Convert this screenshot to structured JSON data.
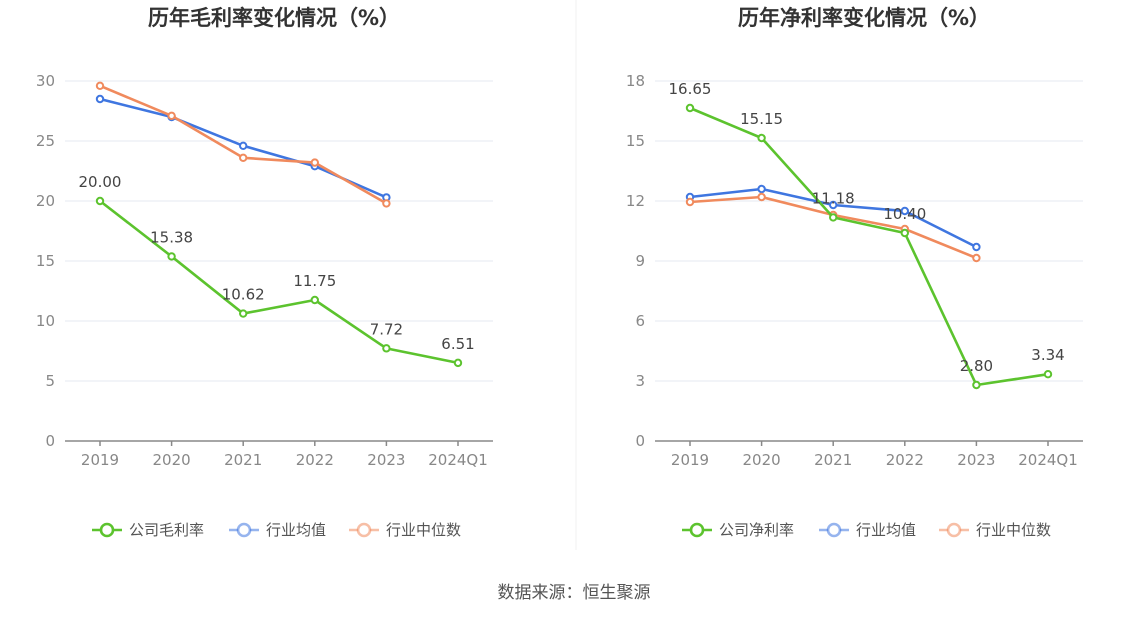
{
  "charts": [
    {
      "type": "line",
      "title": "历年毛利率变化情况（%）",
      "categories": [
        "2019",
        "2020",
        "2021",
        "2022",
        "2023",
        "2024Q1"
      ],
      "y_ticks": [
        0,
        5,
        10,
        15,
        20,
        25,
        30
      ],
      "ylim": [
        0,
        30
      ],
      "series": [
        {
          "name": "公司毛利率",
          "color": "#5cc32e",
          "values": [
            20.0,
            15.38,
            10.62,
            11.75,
            7.72,
            6.51
          ],
          "labels": [
            "20.00",
            "15.38",
            "10.62",
            "11.75",
            "7.72",
            "6.51"
          ]
        },
        {
          "name": "行业均值",
          "color": "#3f76e0",
          "values": [
            28.5,
            27.0,
            24.6,
            22.9,
            20.3,
            null
          ]
        },
        {
          "name": "行业中位数",
          "color": "#f08a5d",
          "values": [
            29.6,
            27.1,
            23.6,
            23.2,
            19.8,
            null
          ]
        }
      ]
    },
    {
      "type": "line",
      "title": "历年净利率变化情况（%）",
      "categories": [
        "2019",
        "2020",
        "2021",
        "2022",
        "2023",
        "2024Q1"
      ],
      "y_ticks": [
        0,
        3,
        6,
        9,
        12,
        15,
        18
      ],
      "ylim": [
        0,
        18
      ],
      "series": [
        {
          "name": "公司净利率",
          "color": "#5cc32e",
          "values": [
            16.65,
            15.15,
            11.18,
            10.4,
            2.8,
            3.34
          ],
          "labels": [
            "16.65",
            "15.15",
            "11.18",
            "10.40",
            "2.80",
            "3.34"
          ]
        },
        {
          "name": "行业均值",
          "color": "#3f76e0",
          "values": [
            12.2,
            12.6,
            11.8,
            11.5,
            9.7,
            null
          ]
        },
        {
          "name": "行业中位数",
          "color": "#f08a5d",
          "values": [
            11.95,
            12.2,
            11.3,
            10.6,
            9.15,
            null
          ]
        }
      ]
    }
  ],
  "source": "数据来源：恒生聚源"
}
